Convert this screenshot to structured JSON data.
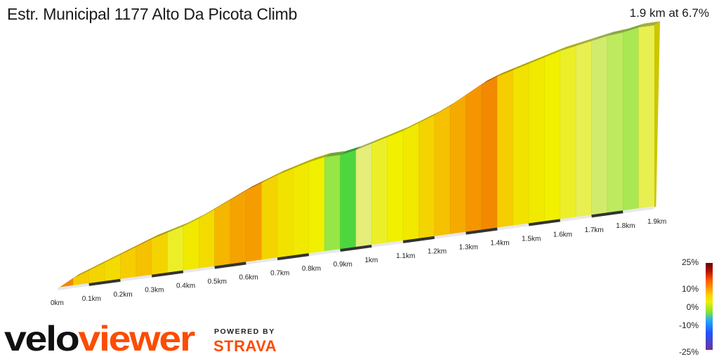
{
  "header": {
    "title": "Estr. Municipal 1177 Alto Da Picota Climb",
    "summary": "1.9 km at 6.7%"
  },
  "brand": {
    "logo_text": "veloviewer",
    "powered_by": "POWERED BY",
    "strava": "STRAVA"
  },
  "legend": {
    "title": "",
    "labels": [
      "25%",
      "10%",
      "0%",
      "-10%",
      "-25%"
    ],
    "values": [
      25,
      10,
      0,
      -10,
      -25
    ]
  },
  "chart_data": {
    "type": "area",
    "title": "Estr. Municipal 1177 Alto Da Picota Climb",
    "xlabel": "",
    "ylabel": "",
    "x_unit": "km",
    "xlim": [
      0,
      1.9
    ],
    "distance_km": [
      0.0,
      0.05,
      0.1,
      0.15,
      0.2,
      0.25,
      0.3,
      0.35,
      0.4,
      0.45,
      0.5,
      0.55,
      0.6,
      0.65,
      0.7,
      0.75,
      0.8,
      0.85,
      0.9,
      0.95,
      1.0,
      1.05,
      1.1,
      1.15,
      1.2,
      1.25,
      1.3,
      1.35,
      1.4,
      1.45,
      1.5,
      1.55,
      1.6,
      1.65,
      1.7,
      1.75,
      1.8,
      1.85,
      1.9
    ],
    "grade_pct": [
      12.0,
      8.5,
      8.0,
      7.5,
      8.5,
      9.0,
      8.0,
      5.5,
      6.5,
      7.5,
      9.5,
      10.5,
      11.0,
      8.0,
      7.0,
      6.5,
      6.0,
      2.5,
      0.5,
      4.5,
      5.5,
      6.0,
      6.5,
      8.0,
      9.0,
      10.0,
      11.5,
      12.0,
      8.5,
      7.0,
      6.5,
      6.0,
      5.5,
      5.0,
      4.0,
      3.5,
      3.0,
      5.0,
      6.5
    ],
    "elevation_m": [
      0,
      6,
      10,
      14,
      18,
      22,
      26,
      29,
      32,
      36,
      41,
      46,
      51,
      55,
      59,
      62,
      65,
      67,
      67,
      69,
      72,
      75,
      78,
      82,
      86,
      91,
      97,
      103,
      107,
      110,
      113,
      116,
      119,
      121,
      123,
      125,
      126,
      128,
      128
    ],
    "ticks": [
      "0km",
      "0.1km",
      "0.2km",
      "0.3km",
      "0.4km",
      "0.5km",
      "0.6km",
      "0.7km",
      "0.8km",
      "0.9km",
      "1km",
      "1.1km",
      "1.2km",
      "1.3km",
      "1.4km",
      "1.5km",
      "1.6km",
      "1.7km",
      "1.8km",
      "1.9km"
    ],
    "tick_values": [
      0,
      0.1,
      0.2,
      0.3,
      0.4,
      0.5,
      0.6,
      0.7,
      0.8,
      0.9,
      1.0,
      1.1,
      1.2,
      1.3,
      1.4,
      1.5,
      1.6,
      1.7,
      1.8,
      1.9
    ],
    "grid": false
  }
}
